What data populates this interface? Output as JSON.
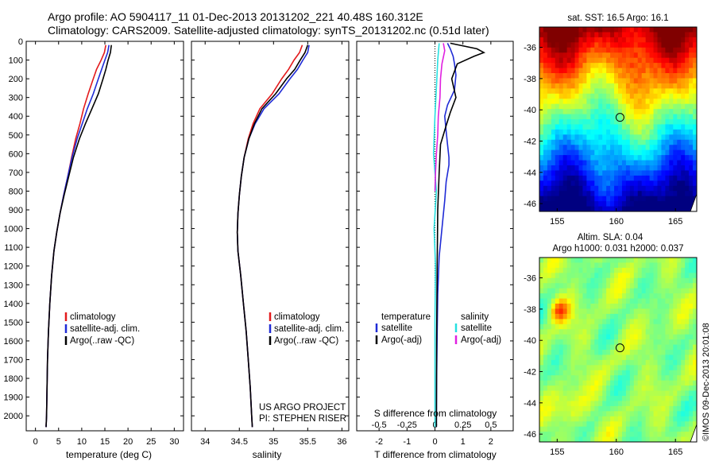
{
  "header": {
    "line1": "Argo profile: AO 5904117_11 01-Dec-2013 20131202_221 40.48S 160.312E",
    "line2": "Climatology: CARS2009. Satellite-adjusted climatology: synTS_20131202.nc (0.51d later)"
  },
  "colors": {
    "climatology": "#e31a1c",
    "satellite_adj": "#1f2bd6",
    "argo": "#000000",
    "sal_satellite": "#27e0e0",
    "sal_argo": "#e020e0"
  },
  "chart_data": [
    {
      "type": "line",
      "xlabel": "temperature (deg C)",
      "ylabel": "",
      "xlim": [
        -2,
        32
      ],
      "ylim": [
        2080,
        0
      ],
      "xticks": [
        "0",
        "5",
        "10",
        "15",
        "20",
        "25",
        "30"
      ],
      "xtick_values": [
        0,
        5,
        10,
        15,
        20,
        25,
        30
      ],
      "yticks": [
        "0",
        "100",
        "200",
        "300",
        "400",
        "500",
        "600",
        "700",
        "800",
        "900",
        "1000",
        "1100",
        "1200",
        "1300",
        "1400",
        "1500",
        "1600",
        "1700",
        "1800",
        "1900",
        "2000"
      ],
      "ytick_values": [
        0,
        100,
        200,
        300,
        400,
        500,
        600,
        700,
        800,
        900,
        1000,
        1100,
        1200,
        1300,
        1400,
        1500,
        1600,
        1700,
        1800,
        1900,
        2000
      ],
      "legend": [
        "climatology",
        "satellite-adj. clim.",
        "Argo(..raw -QC)"
      ],
      "series": [
        {
          "name": "climatology",
          "color": "#e31a1c",
          "x": [
            15.2,
            14.9,
            14.2,
            13.2,
            12.5,
            11.4,
            10.4,
            9.6,
            8.7,
            7.8,
            7.0,
            6.1,
            5.3,
            4.6,
            4.0,
            3.5,
            3.1,
            2.8,
            2.6,
            2.5,
            2.4,
            2.3
          ],
          "y": [
            20,
            60,
            100,
            150,
            200,
            280,
            360,
            440,
            520,
            620,
            720,
            820,
            920,
            1020,
            1120,
            1250,
            1400,
            1550,
            1700,
            1850,
            2000,
            2060
          ]
        },
        {
          "name": "satellite-adj. clim.",
          "color": "#1f2bd6",
          "x": [
            15.9,
            15.6,
            15.0,
            14.3,
            13.6,
            12.5,
            11.2,
            10.1,
            9.0,
            7.9,
            7.0,
            6.1,
            5.3,
            4.6,
            4.0,
            3.5,
            3.1,
            2.8,
            2.6,
            2.5,
            2.4,
            2.3
          ],
          "y": [
            20,
            60,
            100,
            150,
            200,
            280,
            360,
            440,
            520,
            620,
            720,
            820,
            920,
            1020,
            1120,
            1250,
            1400,
            1550,
            1700,
            1850,
            2000,
            2060
          ]
        },
        {
          "name": "Argo(..raw -QC)",
          "color": "#000000",
          "x": [
            16.4,
            16.2,
            15.7,
            15.2,
            14.6,
            13.6,
            12.2,
            10.8,
            9.5,
            8.2,
            7.2,
            6.2,
            5.3,
            4.6,
            4.0,
            3.5,
            3.1,
            2.8,
            2.6,
            2.5,
            2.4,
            2.3
          ],
          "y": [
            20,
            60,
            100,
            150,
            200,
            280,
            360,
            440,
            520,
            620,
            720,
            820,
            920,
            1020,
            1120,
            1250,
            1400,
            1550,
            1700,
            1850,
            2000,
            2060
          ]
        }
      ]
    },
    {
      "type": "line",
      "xlabel": "salinity",
      "xlim": [
        33.8,
        36.1
      ],
      "ylim": [
        2080,
        0
      ],
      "xticks": [
        "34",
        "34.5",
        "35",
        "35.5",
        "36"
      ],
      "xtick_values": [
        34,
        34.5,
        35,
        35.5,
        36
      ],
      "legend": [
        "climatology",
        "satellite-adj. clim.",
        "Argo(..raw -QC)"
      ],
      "annotations": [
        "US ARGO PROJECT",
        "PI: STEPHEN RISER"
      ],
      "series": [
        {
          "name": "climatology",
          "color": "#e31a1c",
          "x": [
            35.42,
            35.38,
            35.3,
            35.22,
            35.12,
            34.98,
            34.8,
            34.7,
            34.63,
            34.57,
            34.53,
            34.5,
            34.48,
            34.47,
            34.48,
            34.52,
            34.56,
            34.6,
            34.63,
            34.66,
            34.68,
            34.69
          ],
          "y": [
            20,
            60,
            100,
            150,
            200,
            280,
            360,
            440,
            520,
            620,
            720,
            820,
            920,
            1020,
            1120,
            1250,
            1400,
            1550,
            1700,
            1850,
            2000,
            2060
          ]
        },
        {
          "name": "satellite-adj. clim.",
          "color": "#1f2bd6",
          "x": [
            35.52,
            35.5,
            35.43,
            35.35,
            35.24,
            35.08,
            34.86,
            34.73,
            34.64,
            34.57,
            34.53,
            34.5,
            34.48,
            34.47,
            34.48,
            34.52,
            34.56,
            34.6,
            34.63,
            34.66,
            34.68,
            34.69
          ],
          "y": [
            20,
            60,
            100,
            150,
            200,
            280,
            360,
            440,
            520,
            620,
            720,
            820,
            920,
            1020,
            1120,
            1250,
            1400,
            1550,
            1700,
            1850,
            2000,
            2060
          ]
        },
        {
          "name": "Argo(..raw -QC)",
          "color": "#000000",
          "x": [
            35.5,
            35.46,
            35.39,
            35.31,
            35.19,
            35.03,
            34.83,
            34.72,
            34.64,
            34.57,
            34.53,
            34.5,
            34.48,
            34.47,
            34.48,
            34.52,
            34.56,
            34.6,
            34.63,
            34.66,
            34.68,
            34.69
          ],
          "y": [
            20,
            60,
            100,
            150,
            200,
            280,
            360,
            440,
            520,
            620,
            720,
            820,
            920,
            1020,
            1120,
            1250,
            1400,
            1550,
            1700,
            1850,
            2000,
            2060
          ]
        }
      ]
    },
    {
      "type": "line",
      "xlabel": "T difference from climatology",
      "xlabel_top": "S difference from climatology",
      "xlim": [
        -2.8,
        2.8
      ],
      "ylim": [
        2080,
        0
      ],
      "xticks": [
        "-2",
        "-1",
        "0",
        "1",
        "2"
      ],
      "xtick_values": [
        -2,
        -1,
        0,
        1,
        2
      ],
      "xticks_top": [
        "-0.5",
        "-0.25",
        "0",
        "0.25",
        "0.5"
      ],
      "xtick_top_values": [
        -2,
        -1,
        0,
        1,
        2
      ],
      "legend_left": {
        "title": "temperature",
        "items": [
          "satellite",
          "Argo(-adj)"
        ]
      },
      "legend_right": {
        "title": "salinity",
        "items": [
          "satellite",
          "Argo(-adj)"
        ]
      },
      "series": [
        {
          "name": "T satellite",
          "color": "#1f2bd6",
          "x": [
            0.45,
            0.55,
            0.65,
            0.7,
            0.75,
            0.7,
            0.45,
            0.35,
            0.4,
            0.45,
            0.5,
            0.5,
            0.4,
            0.35,
            0.25,
            0.15,
            0.1,
            0.08,
            0.06,
            0.05
          ],
          "y": [
            10,
            40,
            80,
            120,
            180,
            260,
            340,
            400,
            480,
            550,
            620,
            660,
            750,
            850,
            1000,
            1150,
            1350,
            1550,
            1800,
            2060
          ]
        },
        {
          "name": "T Argo(-adj)",
          "color": "#000000",
          "x": [
            0.55,
            1.5,
            1.75,
            1.4,
            0.8,
            0.6,
            0.75,
            0.55,
            0.4,
            0.2,
            0.15,
            0.1,
            0.08,
            0.06,
            0.05
          ],
          "y": [
            10,
            40,
            60,
            80,
            120,
            200,
            300,
            380,
            450,
            550,
            700,
            900,
            1200,
            1600,
            2060
          ]
        },
        {
          "name": "S satellite",
          "color": "#27e0e0",
          "x": [
            0.15,
            0.1,
            0.05,
            0.0,
            -0.05,
            0.05,
            -0.03,
            0.02,
            0.0,
            0.0
          ],
          "y": [
            10,
            100,
            250,
            400,
            600,
            800,
            1000,
            1200,
            1500,
            2060
          ]
        },
        {
          "name": "S Argo(-adj)",
          "color": "#e020e0",
          "x": [
            0.3,
            0.35,
            0.25,
            0.2,
            0.18,
            0.12,
            0.1,
            0.05,
            0.02,
            0.0
          ],
          "y": [
            10,
            50,
            120,
            200,
            300,
            400,
            500,
            600,
            700,
            800
          ]
        }
      ]
    },
    {
      "type": "heatmap",
      "title": "sat. SST: 16.5 Argo: 16.1",
      "xticks": [
        "155",
        "160",
        "165"
      ],
      "xtick_values": [
        155,
        160,
        165
      ],
      "yticks": [
        "-36",
        "-38",
        "-40",
        "-42",
        "-44",
        "-46"
      ],
      "ytick_values": [
        -36,
        -38,
        -40,
        -42,
        -44,
        -46
      ],
      "xlim": [
        153.5,
        166.8
      ],
      "ylim": [
        -46.5,
        -34.7
      ],
      "marker": {
        "lon": 160.312,
        "lat": -40.48
      }
    },
    {
      "type": "heatmap",
      "title_line1": "Altim. SLA: 0.04",
      "title_line2": "Argo h1000: 0.031 h2000: 0.037",
      "xticks": [
        "155",
        "160",
        "165"
      ],
      "xtick_values": [
        155,
        160,
        165
      ],
      "yticks": [
        "-36",
        "-38",
        "-40",
        "-42",
        "-44",
        "-46"
      ],
      "ytick_values": [
        -36,
        -38,
        -40,
        -42,
        -44,
        -46
      ],
      "xlim": [
        153.5,
        166.8
      ],
      "ylim": [
        -46.5,
        -34.7
      ],
      "marker": {
        "lon": 160.312,
        "lat": -40.48
      }
    }
  ],
  "footer": {
    "stamp": "©IMOS 09-Dec-2013 20:01:08"
  }
}
